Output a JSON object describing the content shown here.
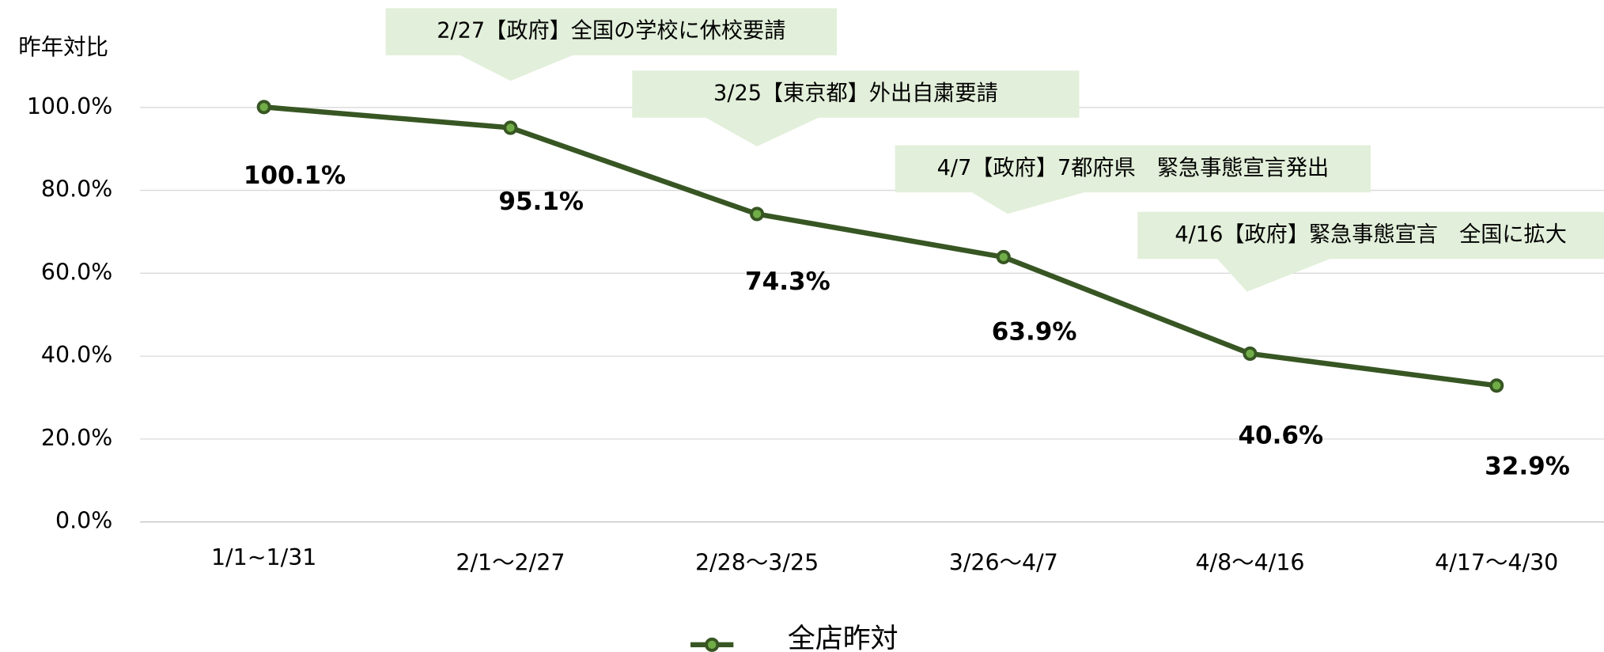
{
  "chart_data": {
    "type": "line",
    "y_axis_label": "昨年対比",
    "categories": [
      "1/1~1/31",
      "2/1～2/27",
      "2/28～3/25",
      "3/26～4/7",
      "4/8～4/16",
      "4/17～4/30"
    ],
    "series": [
      {
        "name": "全店昨対",
        "color": "#375623",
        "values": [
          100.1,
          95.1,
          74.3,
          63.9,
          40.6,
          32.9
        ],
        "value_labels": [
          "100.1%",
          "95.1%",
          "74.3%",
          "63.9%",
          "40.6%",
          "32.9%"
        ]
      }
    ],
    "ylim": [
      0,
      100
    ],
    "yticks": [
      {
        "value": 0,
        "label": "0.0%"
      },
      {
        "value": 20,
        "label": "20.0%"
      },
      {
        "value": 40,
        "label": "40.0%"
      },
      {
        "value": 60,
        "label": "60.0%"
      },
      {
        "value": 80,
        "label": "80.0%"
      },
      {
        "value": 100,
        "label": "100.0%"
      }
    ],
    "grid": true,
    "legend": "bottom",
    "annotations": [
      "2/27【政府】全国の学校に休校要請",
      "3/25【東京都】外出自粛要請",
      "4/7【政府】7都府県　緊急事態宣言発出",
      "4/16【政府】緊急事態宣言　全国に拡大"
    ]
  }
}
